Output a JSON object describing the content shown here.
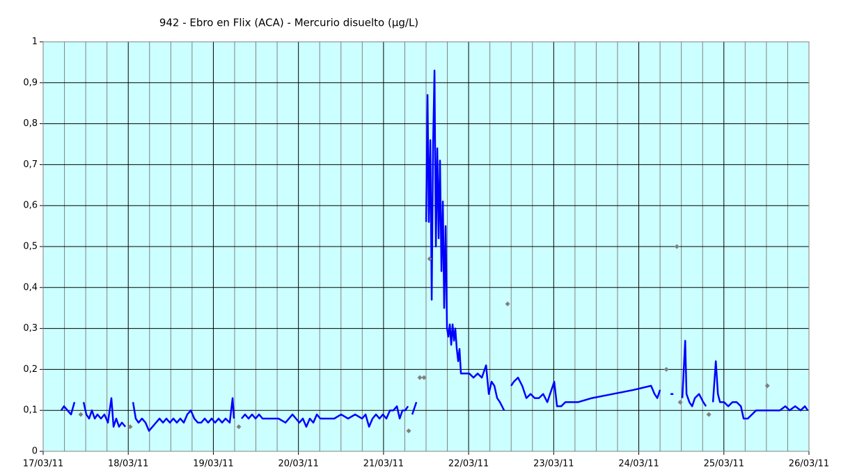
{
  "chart_data": {
    "type": "line",
    "title": "942 - Ebro en Flix (ACA) - Mercurio disuelto (µg/L)",
    "xlim": [
      0,
      9
    ],
    "xticks": [
      {
        "value": 0,
        "label": "17/03/11"
      },
      {
        "value": 1,
        "label": "18/03/11"
      },
      {
        "value": 2,
        "label": "19/03/11"
      },
      {
        "value": 3,
        "label": "20/03/11"
      },
      {
        "value": 4,
        "label": "21/03/11"
      },
      {
        "value": 5,
        "label": "22/03/11"
      },
      {
        "value": 6,
        "label": "23/03/11"
      },
      {
        "value": 7,
        "label": "24/03/11"
      },
      {
        "value": 8,
        "label": "25/03/11"
      },
      {
        "value": 9,
        "label": "26/03/11"
      }
    ],
    "ylim": [
      0,
      1
    ],
    "yticks": [
      0,
      {
        "value": 0.1,
        "label": "0,1"
      },
      {
        "value": 0.2,
        "label": "0,2"
      },
      {
        "value": 0.3,
        "label": "0,3"
      },
      {
        "value": 0.4,
        "label": "0,4"
      },
      {
        "value": 0.5,
        "label": "0,5"
      },
      {
        "value": 0.6,
        "label": "0,6"
      },
      {
        "value": 0.7,
        "label": "0,7"
      },
      {
        "value": 0.8,
        "label": "0,8"
      },
      {
        "value": 0.9,
        "label": "0,9"
      },
      1
    ],
    "grid": true,
    "series": [
      {
        "type": "line",
        "color": "#0000ff",
        "x": [
          0.213,
          0.245,
          0.286,
          0.327,
          0.368,
          null,
          0.475,
          0.507,
          0.54,
          0.573,
          0.606,
          0.638,
          0.679,
          0.72,
          0.761,
          0.802,
          0.827,
          0.859,
          0.892,
          0.925,
          0.966,
          null,
          1.056,
          1.088,
          1.121,
          1.162,
          1.203,
          1.244,
          1.285,
          1.326,
          1.367,
          1.408,
          1.448,
          1.489,
          1.53,
          1.571,
          1.612,
          1.653,
          1.694,
          1.735,
          1.776,
          1.817,
          1.858,
          1.898,
          1.939,
          1.98,
          2.021,
          2.062,
          2.103,
          2.144,
          2.193,
          2.226,
          2.242,
          null,
          2.332,
          2.373,
          2.414,
          2.455,
          2.496,
          2.537,
          2.578,
          2.619,
          2.684,
          2.766,
          2.848,
          2.93,
          2.971,
          3.011,
          3.052,
          3.093,
          3.134,
          3.175,
          3.216,
          3.257,
          3.339,
          3.421,
          3.502,
          3.584,
          3.666,
          3.748,
          3.789,
          3.83,
          3.871,
          3.912,
          3.953,
          3.993,
          4.034,
          4.075,
          4.116,
          4.157,
          4.19,
          4.223,
          4.255,
          4.288,
          null,
          4.337,
          4.386,
          null,
          4.501,
          4.517,
          4.533,
          4.55,
          4.566,
          4.583,
          4.599,
          4.615,
          4.632,
          4.648,
          4.664,
          4.681,
          4.697,
          4.713,
          4.73,
          4.746,
          4.763,
          4.779,
          4.795,
          4.812,
          4.828,
          4.844,
          4.861,
          4.877,
          4.893,
          4.91,
          4.959,
          5.008,
          5.057,
          5.106,
          5.155,
          5.205,
          5.237,
          5.27,
          5.303,
          5.335,
          5.368,
          5.417,
          null,
          5.499,
          5.532,
          5.581,
          5.63,
          5.679,
          5.728,
          5.777,
          5.826,
          5.876,
          5.925,
          5.957,
          6.006,
          6.039,
          6.088,
          6.137,
          6.285,
          6.448,
          6.694,
          6.939,
          7.144,
          7.185,
          7.217,
          7.25,
          null,
          7.373,
          7.406,
          null,
          7.512,
          7.545,
          7.561,
          7.594,
          7.627,
          7.659,
          7.708,
          7.758,
          7.79,
          null,
          7.872,
          7.905,
          7.93,
          7.954,
          8.003,
          8.052,
          8.101,
          8.15,
          8.2,
          8.232,
          8.281,
          8.33,
          8.379,
          8.478,
          8.527,
          8.592,
          8.658,
          8.723,
          8.772,
          8.838,
          8.903,
          8.952,
          8.985
        ],
        "values": [
          0.1,
          0.11,
          0.1,
          0.09,
          0.12,
          null,
          0.12,
          0.09,
          0.08,
          0.1,
          0.08,
          0.09,
          0.08,
          0.09,
          0.07,
          0.13,
          0.06,
          0.08,
          0.06,
          0.07,
          0.06,
          null,
          0.12,
          0.08,
          0.07,
          0.08,
          0.07,
          0.05,
          0.06,
          0.07,
          0.08,
          0.07,
          0.08,
          0.07,
          0.08,
          0.07,
          0.08,
          0.07,
          0.09,
          0.1,
          0.08,
          0.07,
          0.07,
          0.08,
          0.07,
          0.08,
          0.07,
          0.08,
          0.07,
          0.08,
          0.07,
          0.13,
          0.08,
          null,
          0.08,
          0.09,
          0.08,
          0.09,
          0.08,
          0.09,
          0.08,
          0.08,
          0.08,
          0.08,
          0.07,
          0.09,
          0.08,
          0.07,
          0.08,
          0.06,
          0.08,
          0.07,
          0.09,
          0.08,
          0.08,
          0.08,
          0.09,
          0.08,
          0.09,
          0.08,
          0.09,
          0.06,
          0.08,
          0.09,
          0.08,
          0.09,
          0.08,
          0.1,
          0.1,
          0.11,
          0.08,
          0.1,
          0.1,
          0.11,
          null,
          0.09,
          0.12,
          null,
          0.56,
          0.87,
          0.56,
          0.76,
          0.37,
          0.75,
          0.93,
          0.5,
          0.74,
          0.52,
          0.71,
          0.44,
          0.61,
          0.35,
          0.55,
          0.3,
          0.28,
          0.31,
          0.26,
          0.31,
          0.27,
          0.3,
          0.25,
          0.22,
          0.25,
          0.19,
          0.19,
          0.19,
          0.18,
          0.19,
          0.18,
          0.21,
          0.14,
          0.17,
          0.16,
          0.13,
          0.12,
          0.1,
          null,
          0.16,
          0.17,
          0.18,
          0.16,
          0.13,
          0.14,
          0.13,
          0.13,
          0.14,
          0.12,
          0.14,
          0.17,
          0.11,
          0.11,
          0.12,
          0.12,
          0.13,
          0.14,
          0.15,
          0.16,
          0.14,
          0.13,
          0.15,
          null,
          0.14,
          0.14,
          null,
          0.13,
          0.27,
          0.14,
          0.12,
          0.11,
          0.13,
          0.14,
          0.12,
          0.11,
          null,
          0.12,
          0.22,
          0.14,
          0.12,
          0.12,
          0.11,
          0.12,
          0.12,
          0.11,
          0.08,
          0.08,
          0.09,
          0.1,
          0.1,
          0.1,
          0.1,
          0.1,
          0.11,
          0.1,
          0.11,
          0.1,
          0.11,
          0.1
        ]
      },
      {
        "type": "scatter",
        "color": "#808080",
        "x": [
          0.442,
          1.023,
          2.299,
          4.296,
          4.427,
          4.476,
          4.542,
          5.458,
          7.324,
          7.447,
          7.487,
          7.823,
          8.511
        ],
        "values": [
          0.09,
          0.06,
          0.06,
          0.05,
          0.18,
          0.18,
          0.47,
          0.36,
          0.2,
          0.5,
          0.12,
          0.09,
          0.16
        ]
      }
    ]
  }
}
